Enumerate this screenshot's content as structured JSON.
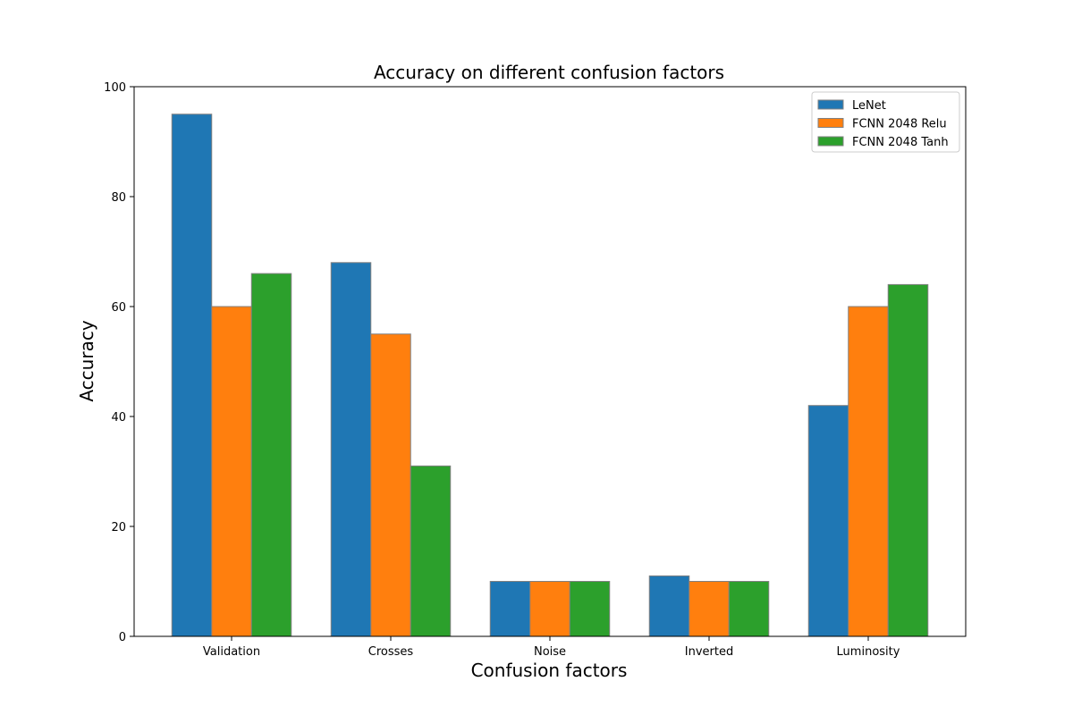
{
  "chart_data": {
    "type": "bar",
    "title": "Accuracy on different confusion factors",
    "xlabel": "Confusion factors",
    "ylabel": "Accuracy",
    "categories": [
      "Validation",
      "Crosses",
      "Noise",
      "Inverted",
      "Luminosity"
    ],
    "series": [
      {
        "name": "LeNet",
        "color": "#1f77b4",
        "values": [
          95,
          68,
          10,
          11,
          42
        ]
      },
      {
        "name": "FCNN 2048 Relu",
        "color": "#ff7f0e",
        "values": [
          60,
          55,
          10,
          10,
          60
        ]
      },
      {
        "name": "FCNN 2048 Tanh",
        "color": "#2ca02c",
        "values": [
          66,
          31,
          10,
          10,
          64
        ]
      }
    ],
    "ylim": [
      0,
      100
    ],
    "yticks": [
      0,
      20,
      40,
      60,
      80,
      100
    ],
    "grid": false,
    "legend_position": "top-right",
    "bar_edge_color": "#808080"
  }
}
